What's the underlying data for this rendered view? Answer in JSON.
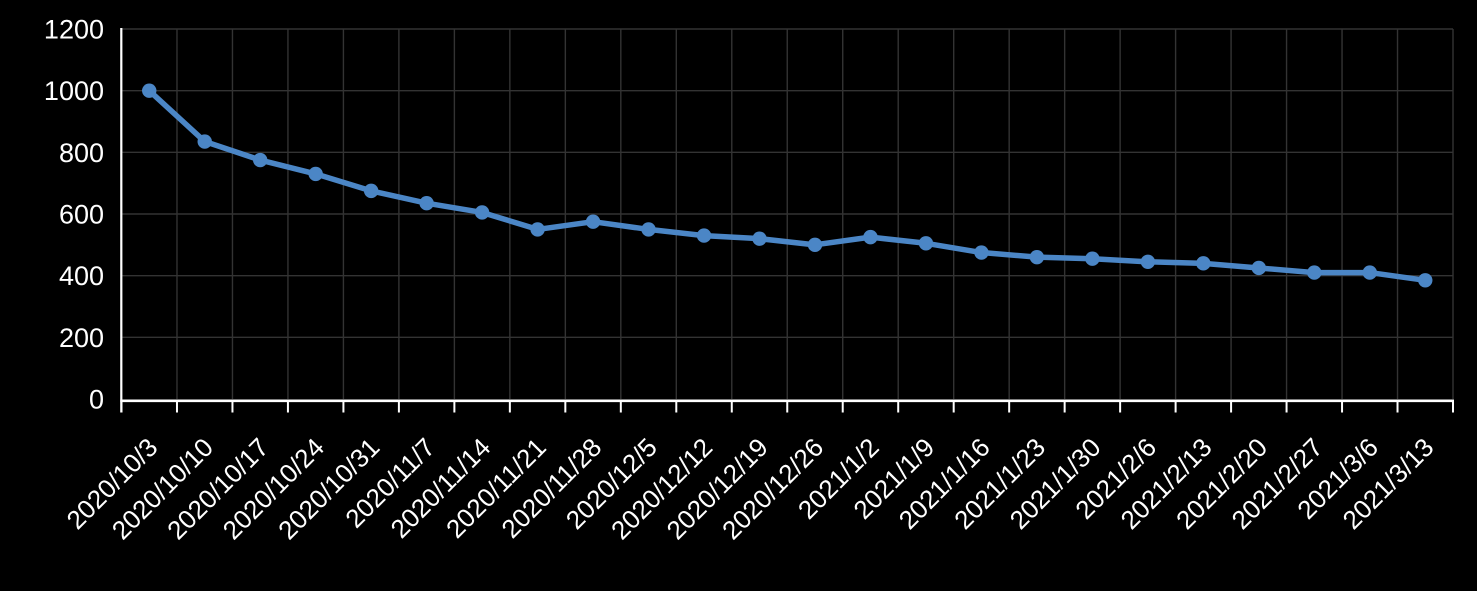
{
  "chart_data": {
    "type": "line",
    "title": "",
    "xlabel": "",
    "ylabel": "",
    "legend": "none",
    "grid": "both",
    "x_label_rotation_deg": -45,
    "categories": [
      "2020/10/3",
      "2020/10/10",
      "2020/10/17",
      "2020/10/24",
      "2020/10/31",
      "2020/11/7",
      "2020/11/14",
      "2020/11/21",
      "2020/11/28",
      "2020/12/5",
      "2020/12/12",
      "2020/12/19",
      "2020/12/26",
      "2021/1/2",
      "2021/1/9",
      "2021/1/16",
      "2021/1/23",
      "2021/1/30",
      "2021/2/6",
      "2021/2/13",
      "2021/2/20",
      "2021/2/27",
      "2021/3/6",
      "2021/3/13"
    ],
    "values": [
      1000,
      835,
      775,
      730,
      675,
      635,
      605,
      550,
      575,
      550,
      530,
      520,
      500,
      525,
      505,
      475,
      460,
      455,
      445,
      440,
      425,
      410,
      410,
      385
    ],
    "ylim": [
      0,
      1200
    ],
    "ytick_interval": 200,
    "ytick_labels": [
      "0",
      "200",
      "400",
      "600",
      "800",
      "1000",
      "1200"
    ],
    "marker": "circle",
    "colors": {
      "background": "#000000",
      "series_line": "#4b86c6",
      "marker_fill": "#4b86c6",
      "gridline": "#333333",
      "axis_line": "#ffffff",
      "tick_mark": "#ffffff",
      "tick_label": "#ffffff"
    }
  }
}
